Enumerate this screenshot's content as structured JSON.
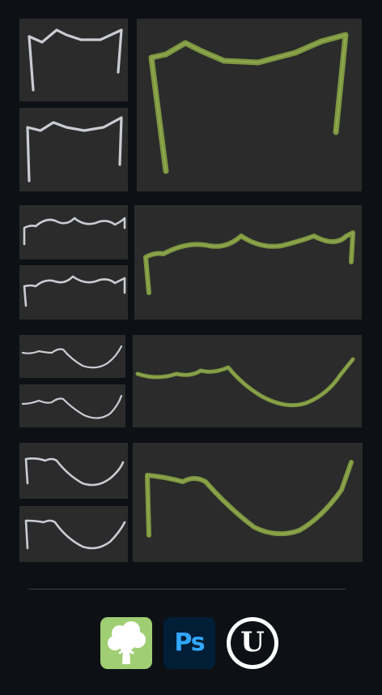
{
  "gallery": {
    "rows": [
      {
        "name": "arch-curve",
        "views": [
          "white-model-view",
          "white-model-view",
          "textured-render"
        ]
      },
      {
        "name": "wave-curve",
        "views": [
          "white-model-view",
          "white-model-view",
          "textured-render"
        ]
      },
      {
        "name": "dip-curve",
        "views": [
          "white-model-view",
          "white-model-view",
          "textured-render"
        ]
      },
      {
        "name": "hook-curve",
        "views": [
          "white-model-view",
          "white-model-view",
          "textured-render"
        ]
      }
    ]
  },
  "colors": {
    "page_background": "#0d1115",
    "panel_background": "#2b2b2b",
    "white_model": "#c9cdd3",
    "textured_model": "#8aa24a"
  },
  "tools": [
    {
      "icon": "tree-app-icon"
    },
    {
      "icon": "photoshop-app-icon",
      "label": "Ps"
    },
    {
      "icon": "unreal-engine-icon",
      "label": "U"
    }
  ]
}
